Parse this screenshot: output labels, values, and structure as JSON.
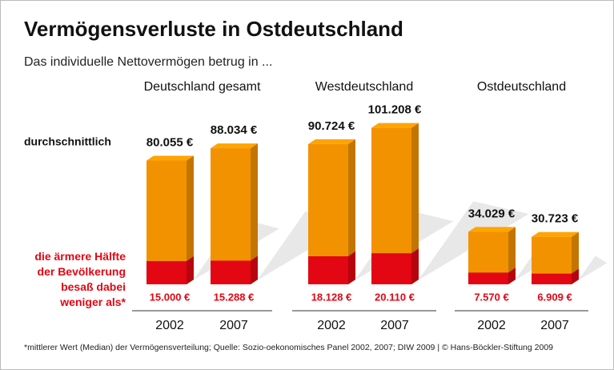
{
  "chart_data": {
    "type": "bar",
    "title": "Vermögensverluste in Ostdeutschland",
    "subtitle": "Das individuelle Nettovermögen betrug in ...",
    "groups": [
      "Deutschland gesamt",
      "Westdeutschland",
      "Ostdeutschland"
    ],
    "categories": [
      "2002",
      "2007",
      "2002",
      "2007",
      "2002",
      "2007"
    ],
    "series": [
      {
        "name": "durchschnittlich",
        "color": "#f39200",
        "values": [
          80055,
          88034,
          90724,
          101208,
          34029,
          30723
        ],
        "value_labels": [
          "80.055 €",
          "88.034 €",
          "90.724 €",
          "101.208 €",
          "34.029 €",
          "30.723 €"
        ]
      },
      {
        "name": "die ärmere Hälfte\nder Bevölkerung\nbesaß dabei\nweniger als*",
        "color": "#e30613",
        "values": [
          15000,
          15288,
          18128,
          20110,
          7570,
          6909
        ],
        "value_labels": [
          "15.000 €",
          "15.288 €",
          "18.128 €",
          "20.110 €",
          "7.570 €",
          "6.909 €"
        ]
      }
    ],
    "footnote": "*mittlerer Wert (Median) der Vermögensverteilung; Quelle: Sozio-oekonomisches Panel 2002, 2007; DIW 2009 | © Hans-Böckler-Stiftung 2009"
  }
}
